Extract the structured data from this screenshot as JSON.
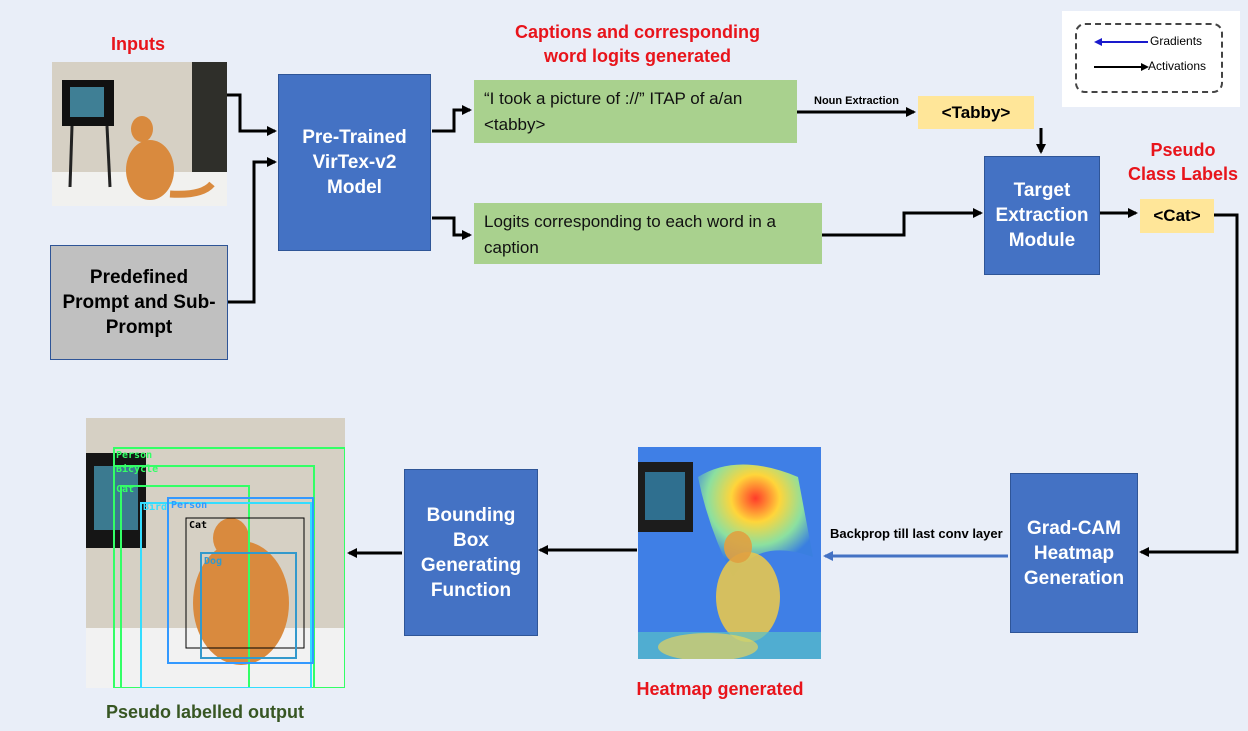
{
  "titles": {
    "inputs": "Inputs",
    "captions": "Captions and corresponding\nword logits generated",
    "pseudo_class": "Pseudo\nClass Labels",
    "heatmap_generated": "Heatmap generated",
    "pseudo_output": "Pseudo labelled output"
  },
  "boxes": {
    "prompt": "Predefined\nPrompt and Sub-\nPrompt",
    "virtex": "Pre-Trained\nVirTex-v2\nModel",
    "caption": "“I took a picture of ://” ITAP of a/an\n<tabby>",
    "logits": "Logits corresponding to each word in a\ncaption",
    "tabby": "<Tabby>",
    "target": "Target\nExtraction\nModule",
    "cat": "<Cat>",
    "gradcam": "Grad-CAM\nHeatmap\nGeneration",
    "bbox": "Bounding\nBox\nGenerating\nFunction"
  },
  "edge_labels": {
    "noun": "Noun Extraction",
    "backprop": "Backprop till last conv layer"
  },
  "legend": {
    "gradients": "Gradients",
    "activations": "Activations"
  },
  "detections": [
    {
      "label": "Person",
      "color": "#33ff66"
    },
    {
      "label": "Bicycle",
      "color": "#33ff66"
    },
    {
      "label": "Cat",
      "color": "#33ff66"
    },
    {
      "label": "Bird",
      "color": "#33ddff"
    },
    {
      "label": "Person",
      "color": "#3399ff"
    },
    {
      "label": "Cat",
      "color": "#000000"
    },
    {
      "label": "Dog",
      "color": "#3399cc"
    }
  ],
  "colors": {
    "background": "#e9eef8",
    "blue_box": "#4472c4",
    "green_box": "#a9d18e",
    "yellow_box": "#ffe699",
    "gray_box": "#c0c0c0",
    "title_red": "#e8141b",
    "title_green": "#375623",
    "gradient_arrow": "#4472c4",
    "activation_arrow": "#000000"
  }
}
